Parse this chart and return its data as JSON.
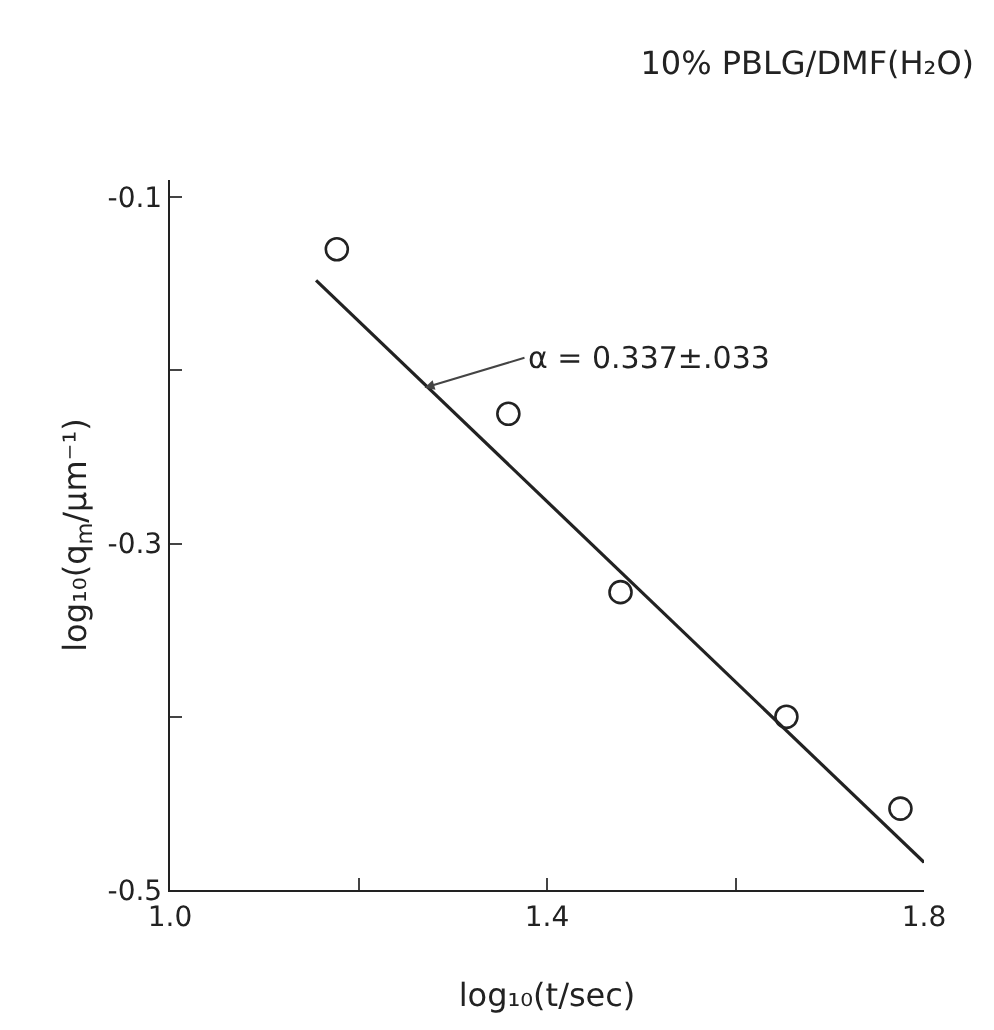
{
  "chart_data": {
    "type": "scatter",
    "title": "10% PBLG/DMF(H₂O)",
    "xlabel": "log₁₀(t/sec)",
    "ylabel": "log₁₀(q$_{m}$/μm⁻¹)",
    "series": [
      {
        "color": "#222222",
        "x": [
          1.177,
          1.359,
          1.478,
          1.654,
          1.775
        ],
        "values": [
          -0.13,
          -0.225,
          -0.328,
          -0.4,
          -0.453
        ],
        "marker": "circle"
      },
      {
        "type": "line",
        "color": "#222222",
        "x": [
          1.155,
          1.8
        ],
        "values": [
          -0.148,
          -0.484
        ],
        "marker": "none",
        "line_style": "solid"
      }
    ],
    "annotations": [
      {
        "text": "α = 0.337±.033",
        "x": 1.27,
        "y": -0.21
      }
    ],
    "xlim": [
      1.0,
      1.8
    ],
    "xticks": [
      {
        "value": 1.0,
        "label": "1.0"
      },
      {
        "value": 1.2,
        "label": null
      },
      {
        "value": 1.4,
        "label": "1.4"
      },
      {
        "value": 1.6,
        "label": null
      },
      {
        "value": 1.8,
        "label": "1.8"
      }
    ],
    "ylim": [
      -0.5,
      -0.09
    ],
    "yticks": [
      -0.1,
      {
        "value": -0.2,
        "label": null
      },
      -0.3,
      {
        "value": -0.4,
        "label": null
      },
      -0.5
    ],
    "grid": false
  }
}
